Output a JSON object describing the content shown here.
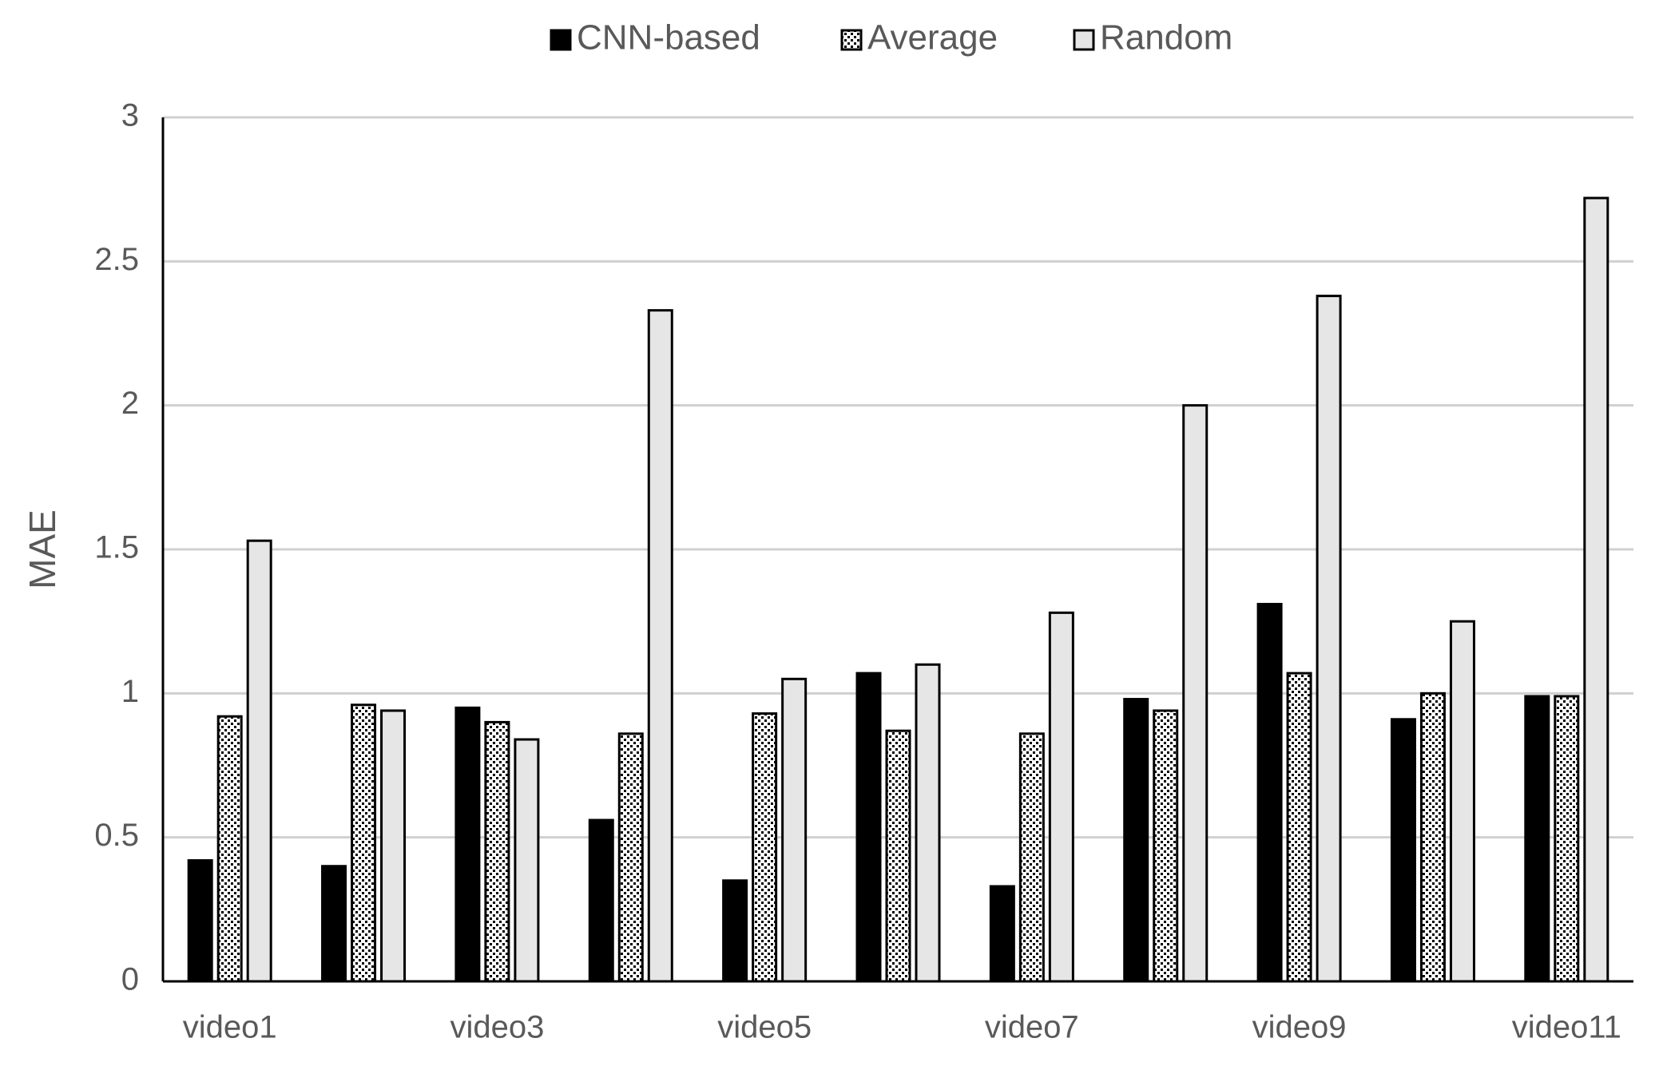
{
  "chart_data": {
    "type": "bar",
    "y_label": "MAE",
    "categories": [
      "video1",
      null,
      "video3",
      null,
      "video5",
      null,
      "video7",
      null,
      "video9",
      null,
      "video11"
    ],
    "series": [
      {
        "name": "CNN-based",
        "color": "#000000",
        "values": [
          0.42,
          0.4,
          0.95,
          0.56,
          0.35,
          1.07,
          0.33,
          0.98,
          1.31,
          0.91,
          0.99
        ]
      },
      {
        "name": "Average",
        "color": "#ffffff",
        "pattern": "dots",
        "values": [
          0.92,
          0.96,
          0.9,
          0.86,
          0.93,
          0.87,
          0.86,
          0.94,
          1.07,
          1.0,
          0.99
        ]
      },
      {
        "name": "Random",
        "color": "#e6e6e6",
        "values": [
          1.53,
          0.94,
          0.84,
          2.33,
          1.05,
          1.1,
          1.28,
          2.0,
          2.38,
          1.25,
          2.72
        ]
      }
    ],
    "ylim": [
      0,
      3
    ],
    "yticks": [
      0,
      0.5,
      1,
      1.5,
      2,
      2.5,
      3
    ],
    "grid": true,
    "legend": "top"
  }
}
